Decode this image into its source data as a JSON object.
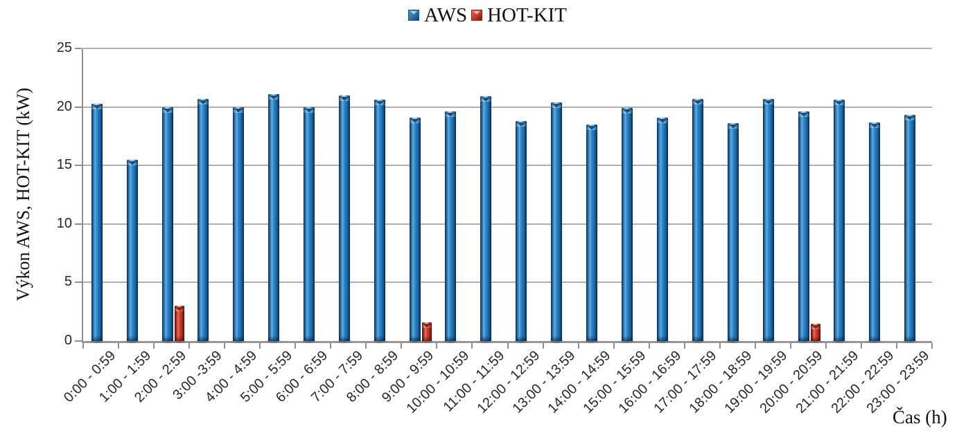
{
  "legend": [
    {
      "label": "AWS",
      "color": "#2E77B5"
    },
    {
      "label": "HOT-KIT",
      "color": "#C0392B"
    }
  ],
  "y_axis": {
    "title": "Výkon AWS, HOT-KIT (kW)",
    "ticks": [
      0,
      5,
      10,
      15,
      20,
      25
    ]
  },
  "x_axis": {
    "title": "Čas (h)"
  },
  "chart_data": {
    "type": "bar",
    "title": "",
    "xlabel": "Čas (h)",
    "ylabel": "Výkon AWS, HOT-KIT (kW)",
    "ylim": [
      0,
      25
    ],
    "grid": true,
    "legend_position": "top-center",
    "categories": [
      "0:00 - 0:59",
      "1:00 - 1:59",
      "2:00 - 2:59",
      "3:00 -3:59",
      "4:00 - 4:59",
      "5:00 - 5:59",
      "6:00 - 6:59",
      "7:00 - 7:59",
      "8:00 - 8:59",
      "9:00 - 9:59",
      "10:00 - 10:59",
      "11:00 - 11:59",
      "12:00 - 12:59",
      "13:00 - 13:59",
      "14:00 - 14:59",
      "15:00 - 15:59",
      "16:00 - 16:59",
      "17:00 - 17:59",
      "18:00 - 18:59",
      "19:00 - 19:59",
      "20:00 - 20:59",
      "21:00 - 21:59",
      "22:00 - 22:59",
      "23:00 - 23:59"
    ],
    "series": [
      {
        "name": "AWS",
        "color": "#2074BA",
        "values": [
          20.3,
          15.5,
          20.0,
          20.7,
          20.0,
          21.1,
          20.0,
          21.0,
          20.6,
          19.1,
          19.6,
          20.9,
          18.8,
          20.4,
          18.5,
          19.9,
          19.1,
          20.7,
          18.6,
          20.7,
          19.6,
          20.6,
          18.7,
          19.3
        ]
      },
      {
        "name": "HOT-KIT",
        "color": "#C63A2F",
        "values": [
          0,
          0,
          3.0,
          0,
          0,
          0,
          0,
          0,
          0,
          1.6,
          0,
          0,
          0,
          0,
          0,
          0,
          0,
          0,
          0,
          0,
          1.5,
          0,
          0,
          0
        ]
      }
    ]
  }
}
